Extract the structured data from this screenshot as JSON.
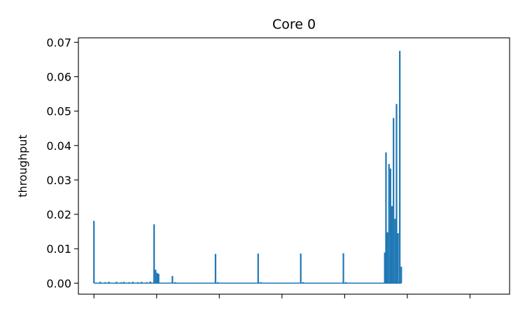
{
  "chart_data": {
    "type": "line",
    "title": "Core 0",
    "xlabel": "",
    "ylabel": "throughput",
    "ylim": [
      -0.0032,
      0.0713
    ],
    "xlim": [
      -0.62,
      16.58
    ],
    "x_ticks": [
      0,
      2.5,
      5,
      7.5,
      10,
      12.5,
      15
    ],
    "x_tick_labels": [
      "",
      "",
      "",
      "",
      "",
      "",
      ""
    ],
    "y_ticks": [
      0.0,
      0.01,
      0.02,
      0.03,
      0.04,
      0.05,
      0.06,
      0.07
    ],
    "y_tick_labels": [
      "0.00",
      "0.01",
      "0.02",
      "0.03",
      "0.04",
      "0.05",
      "0.06",
      "0.07"
    ],
    "grid": false,
    "legend": "none",
    "series": [
      {
        "color": "#1f77b4",
        "spikes": [
          [
            0.0,
            0.0181
          ],
          [
            0.25,
            0.0004
          ],
          [
            0.45,
            0.0003
          ],
          [
            0.6,
            0.0004
          ],
          [
            0.9,
            0.0004
          ],
          [
            1.1,
            0.0003
          ],
          [
            1.2,
            0.0004
          ],
          [
            1.4,
            0.0003
          ],
          [
            1.55,
            0.0004
          ],
          [
            1.75,
            0.0003
          ],
          [
            1.9,
            0.0004
          ],
          [
            2.1,
            0.0003
          ],
          [
            2.25,
            0.0005
          ],
          [
            2.4,
            0.0171
          ],
          [
            2.46,
            0.0039
          ],
          [
            2.52,
            0.003
          ],
          [
            2.58,
            0.0027
          ],
          [
            3.13,
            0.0021
          ],
          [
            3.25,
            0.0003
          ],
          [
            4.85,
            0.0085
          ],
          [
            4.95,
            0.0003
          ],
          [
            6.55,
            0.0086
          ],
          [
            6.65,
            0.0003
          ],
          [
            8.25,
            0.0086
          ],
          [
            8.35,
            0.0003
          ],
          [
            9.95,
            0.0087
          ],
          [
            10.05,
            0.0003
          ],
          [
            11.6,
            0.0089
          ],
          [
            11.65,
            0.038
          ],
          [
            11.71,
            0.0148
          ],
          [
            11.77,
            0.0346
          ],
          [
            11.83,
            0.0333
          ],
          [
            11.89,
            0.0224
          ],
          [
            11.95,
            0.048
          ],
          [
            12.01,
            0.0187
          ],
          [
            12.07,
            0.0521
          ],
          [
            12.13,
            0.0145
          ],
          [
            12.2,
            0.0675
          ],
          [
            12.26,
            0.0048
          ]
        ]
      }
    ]
  }
}
